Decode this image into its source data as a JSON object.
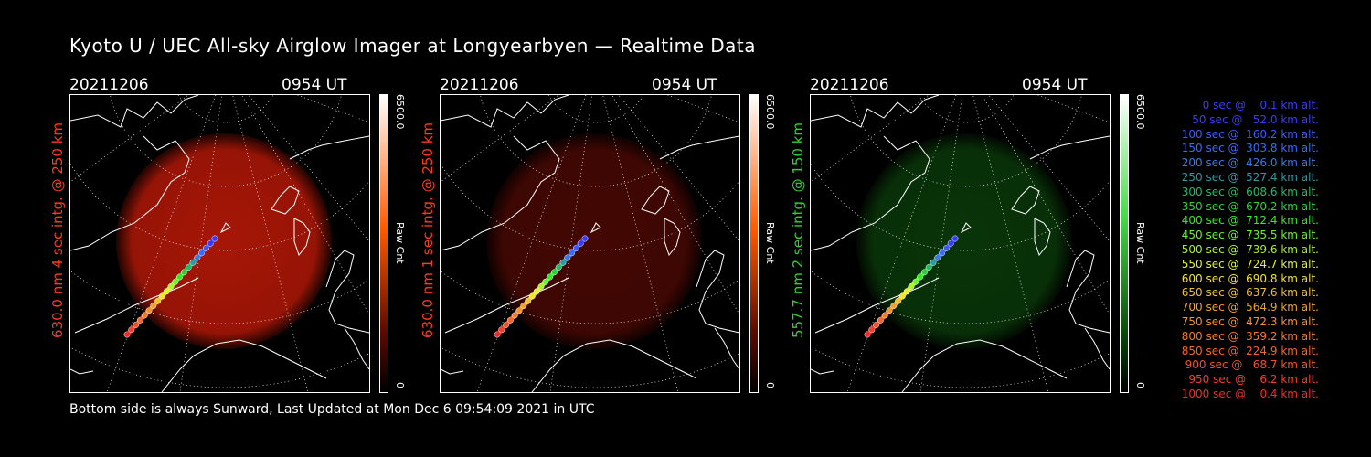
{
  "title": "Kyoto U / UEC All-sky Airglow Imager at Longyearbyen — Realtime Data",
  "footer": "Bottom side is always Sunward, Last Updated at Mon Dec  6 09:54:09 2021 in UTC",
  "panels": [
    {
      "date": "20211206",
      "time": "0954 UT",
      "side_label": "630.0 nm 4 sec intg. @ 250 km",
      "side_color": "#ff3a1e",
      "glow": "#c41a08",
      "glow_opacity": 0.85,
      "cbar_top": "6500.0",
      "cbar_bottom": "0",
      "cbar_mid": "Raw Cnt",
      "cbar_color": "#ff5a00"
    },
    {
      "date": "20211206",
      "time": "0954 UT",
      "side_label": "630.0 nm 1 sec intg. @ 250 km",
      "side_color": "#ff3a1e",
      "glow": "#5a0a04",
      "glow_opacity": 0.75,
      "cbar_top": "6500.0",
      "cbar_bottom": "0",
      "cbar_mid": "Raw Cnt",
      "cbar_color": "#ff5a00"
    },
    {
      "date": "20211206",
      "time": "0954 UT",
      "side_label": "557.7 nm 2 sec intg. @ 150 km",
      "side_color": "#2fd22f",
      "glow": "#0a3a0a",
      "glow_opacity": 0.9,
      "cbar_top": "6500.0",
      "cbar_bottom": "0",
      "cbar_mid": "Raw Cnt",
      "cbar_color": "#4bdc4b"
    }
  ],
  "legend": [
    {
      "text": "   0 sec @    0.1 km alt.",
      "color": "#3a3aff"
    },
    {
      "text": "  50 sec @   52.0 km alt.",
      "color": "#3a3aff"
    },
    {
      "text": " 100 sec @  160.2 km alt.",
      "color": "#3a5aff"
    },
    {
      "text": " 150 sec @  303.8 km alt.",
      "color": "#3a6aff"
    },
    {
      "text": " 200 sec @  426.0 km alt.",
      "color": "#3a7ae6"
    },
    {
      "text": " 250 sec @  527.4 km alt.",
      "color": "#2a9aa6"
    },
    {
      "text": " 300 sec @  608.6 km alt.",
      "color": "#2ab66a"
    },
    {
      "text": " 350 sec @  670.2 km alt.",
      "color": "#2ad23a"
    },
    {
      "text": " 400 sec @  712.4 km alt.",
      "color": "#3ae62a"
    },
    {
      "text": " 450 sec @  735.5 km alt.",
      "color": "#6af22a"
    },
    {
      "text": " 500 sec @  739.6 km alt.",
      "color": "#aaf22a"
    },
    {
      "text": " 550 sec @  724.7 km alt.",
      "color": "#e2f22a"
    },
    {
      "text": " 600 sec @  690.8 km alt.",
      "color": "#f2e22a"
    },
    {
      "text": " 650 sec @  637.6 km alt.",
      "color": "#f2c22a"
    },
    {
      "text": " 700 sec @  564.9 km alt.",
      "color": "#f2a22a"
    },
    {
      "text": " 750 sec @  472.3 km alt.",
      "color": "#f2922a"
    },
    {
      "text": " 800 sec @  359.2 km alt.",
      "color": "#f27a2a"
    },
    {
      "text": " 850 sec @  224.9 km alt.",
      "color": "#f2662a"
    },
    {
      "text": " 900 sec @   68.7 km alt.",
      "color": "#f2522a"
    },
    {
      "text": " 950 sec @    6.2 km alt.",
      "color": "#f23e2a"
    },
    {
      "text": "1000 sec @    0.4 km alt.",
      "color": "#f22a2a"
    }
  ]
}
